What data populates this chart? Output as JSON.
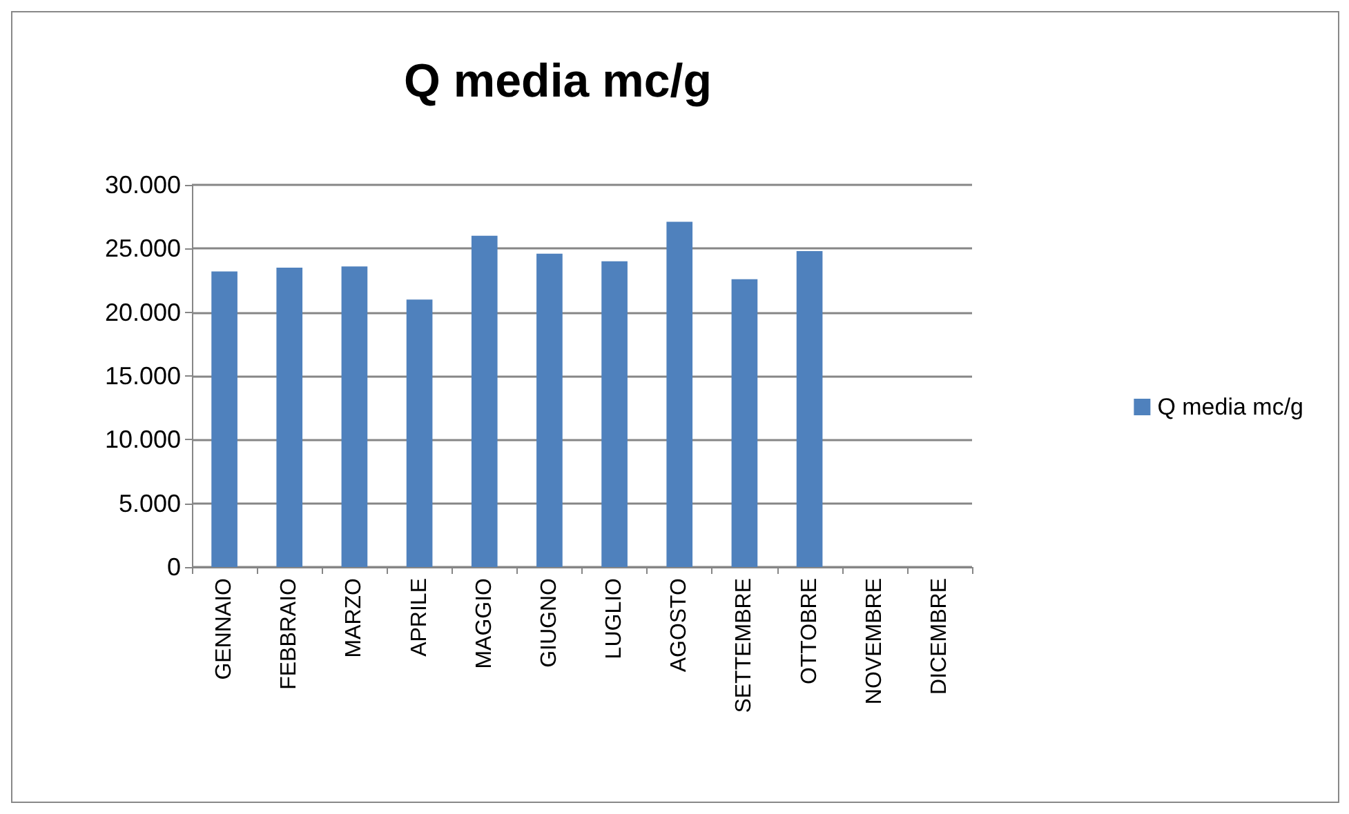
{
  "chart_data": {
    "type": "bar",
    "title": "Q media mc/g",
    "categories": [
      "GENNAIO",
      "FEBBRAIO",
      "MARZO",
      "APRILE",
      "MAGGIO",
      "GIUGNO",
      "LUGLIO",
      "AGOSTO",
      "SETTEMBRE",
      "OTTOBRE",
      "NOVEMBRE",
      "DICEMBRE"
    ],
    "series": [
      {
        "name": "Q media mc/g",
        "color": "#4f81bd",
        "values": [
          23200,
          23500,
          23600,
          21000,
          26000,
          24600,
          24000,
          27100,
          22600,
          24800,
          null,
          null
        ]
      }
    ],
    "ylim": [
      0,
      30000
    ],
    "yticks": [
      {
        "value": 0,
        "label": "0"
      },
      {
        "value": 5000,
        "label": "5.000"
      },
      {
        "value": 10000,
        "label": "10.000"
      },
      {
        "value": 15000,
        "label": "15.000"
      },
      {
        "value": 20000,
        "label": "20.000"
      },
      {
        "value": 25000,
        "label": "25.000"
      },
      {
        "value": 30000,
        "label": "30.000"
      }
    ],
    "grid": "y",
    "legend": "right"
  }
}
